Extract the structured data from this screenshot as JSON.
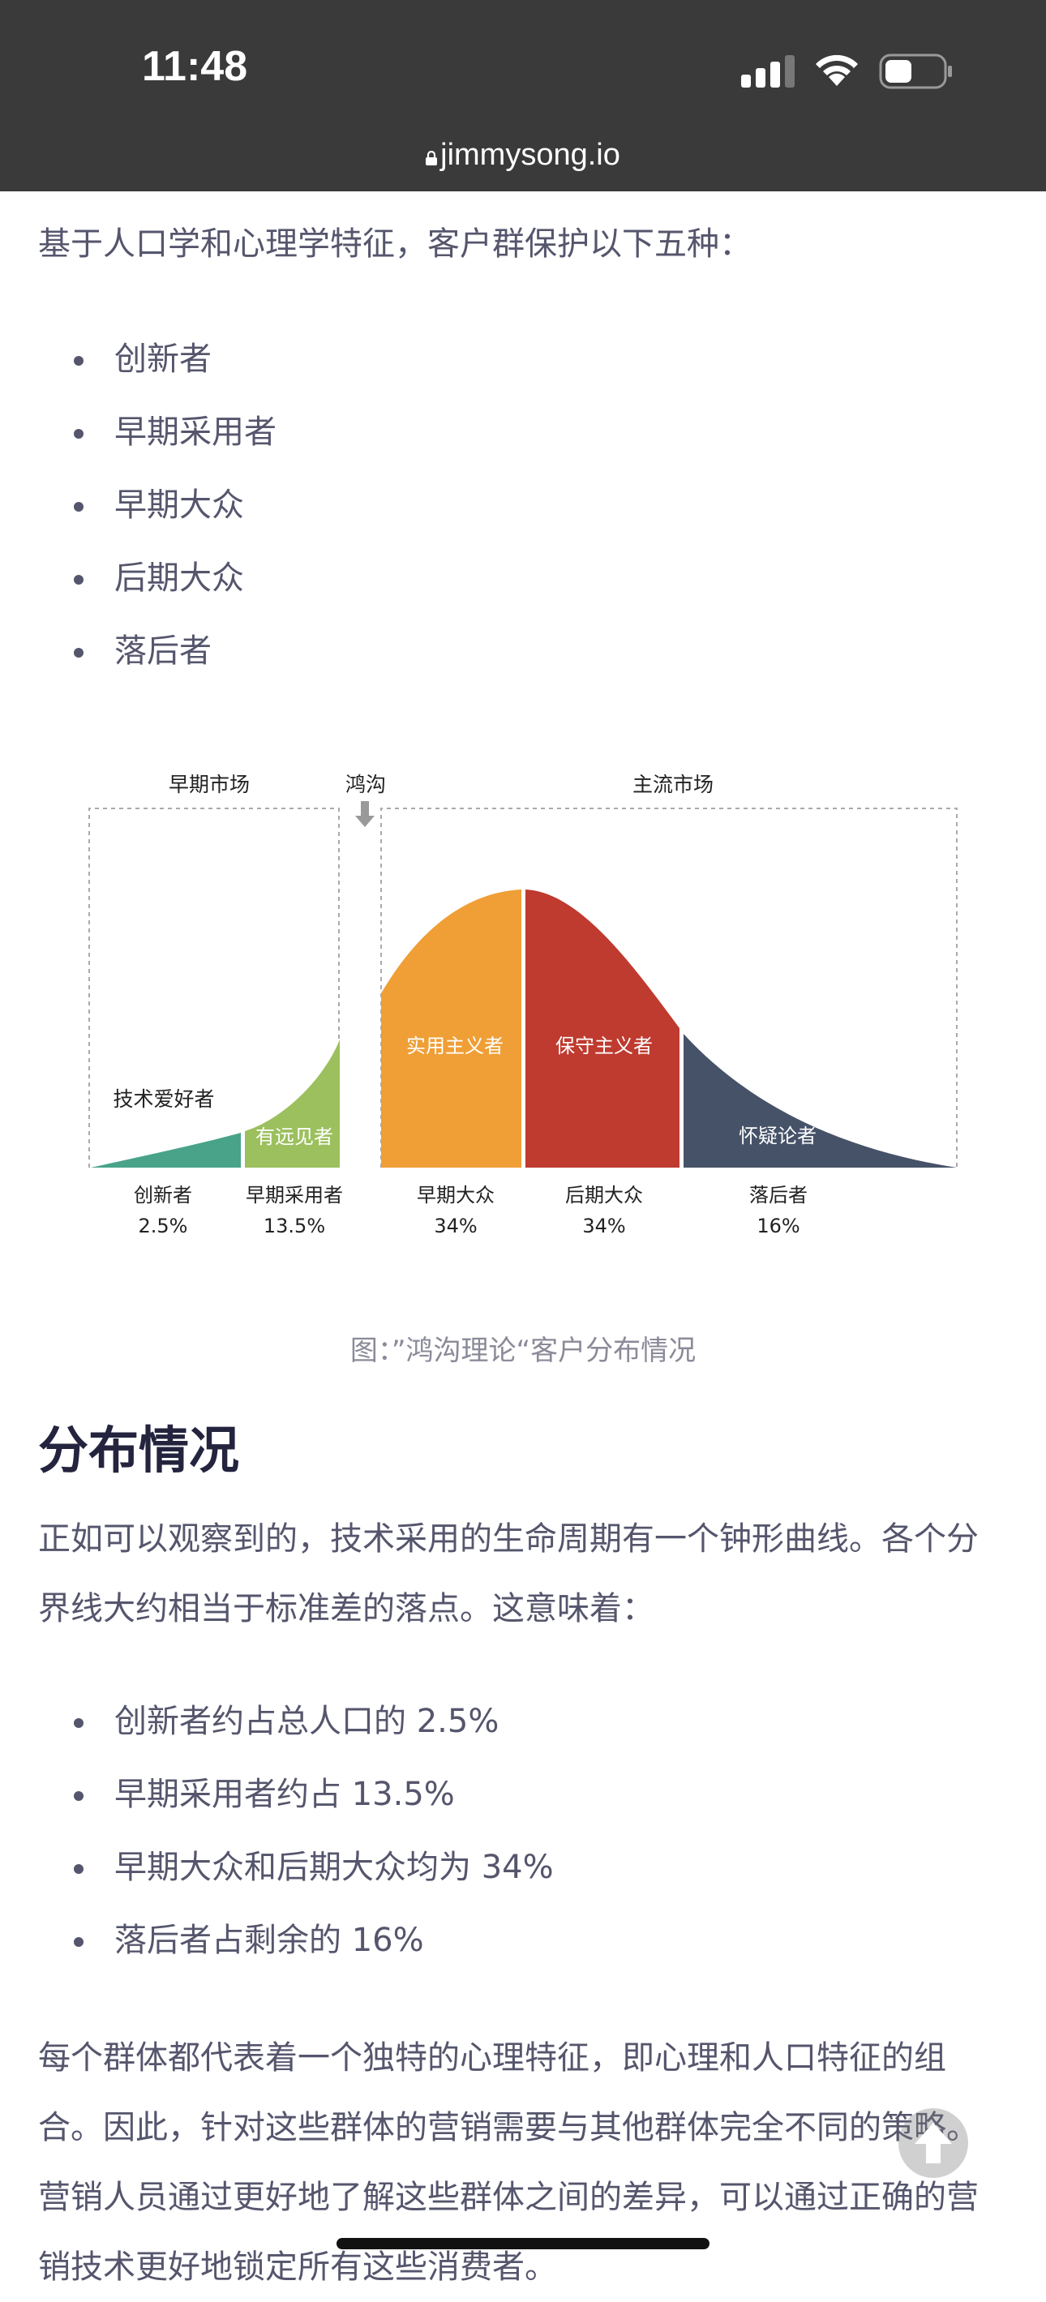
{
  "status_bar": {
    "time": "11:48"
  },
  "url_bar": {
    "domain": "jimmysong.io"
  },
  "intro": "基于人口学和心理学特征，客户群保护以下五种：",
  "segments": [
    "创新者",
    "早期采用者",
    "早期大众",
    "后期大众",
    "落后者"
  ],
  "chart_data": {
    "type": "area",
    "top_labels": {
      "early_market": "早期市场",
      "chasm": "鸿沟",
      "mainstream": "主流市场"
    },
    "curve_labels": [
      "技术爱好者",
      "有远见者",
      "实用主义者",
      "保守主义者",
      "怀疑论者"
    ],
    "categories": [
      "创新者",
      "早期采用者",
      "早期大众",
      "后期大众",
      "落后者"
    ],
    "percent_labels": [
      "2.5%",
      "13.5%",
      "34%",
      "34%",
      "16%"
    ],
    "values": [
      2.5,
      13.5,
      34,
      34,
      16
    ],
    "colors": [
      "#48a389",
      "#9bc05d",
      "#ef9f36",
      "#bf3a2f",
      "#465268"
    ]
  },
  "caption": "图：”鸿沟理论“客户分布情况",
  "section_heading": "分布情况",
  "para2": "正如可以观察到的，技术采用的生命周期有一个钟形曲线。各个分界线大约相当于标准差的落点。这意味着：",
  "distribution": [
    "创新者约占总人口的 2.5%",
    "早期采用者约占 13.5%",
    "早期大众和后期大众均为 34%",
    "落后者占剩余的 16%"
  ],
  "para3": "每个群体都代表着一个独特的心理特征，即心理和人口特征的组合。因此，针对这些群体的营销需要与其他群体完全不同的策略。营销人员通过更好地了解这些群体之间的差异，可以通过正确的营销技术更好地锁定所有这些消费者。"
}
